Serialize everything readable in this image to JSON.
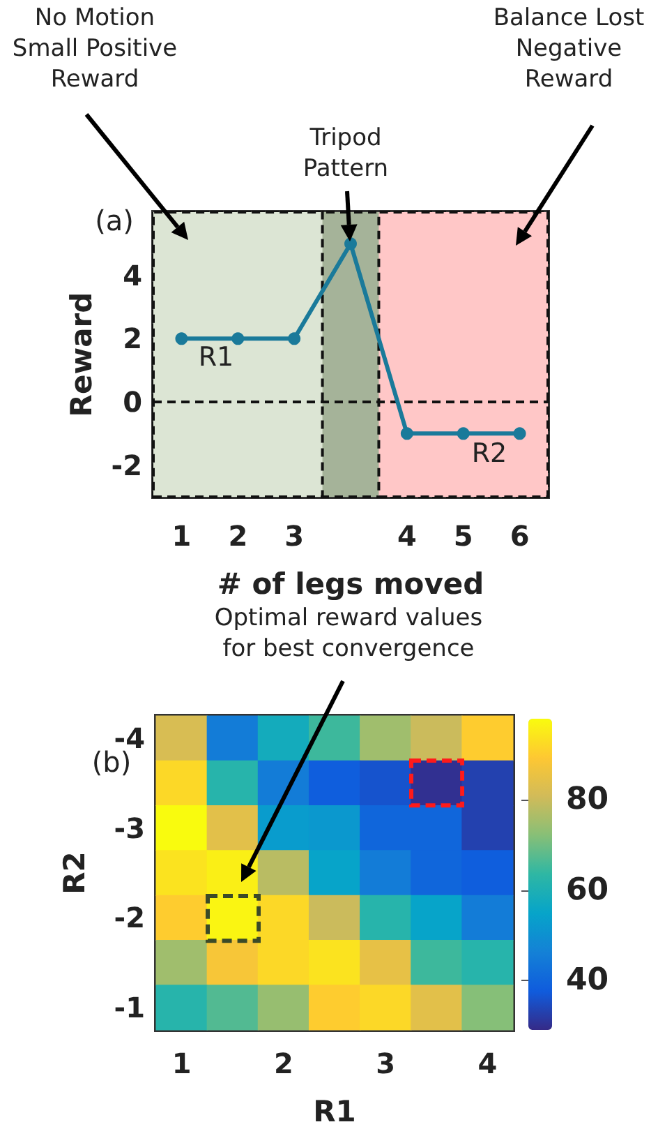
{
  "chart_data": [
    {
      "type": "line",
      "ylabel": "Reward",
      "xlabel": "# of legs moved",
      "categories": [
        "1",
        "2",
        "3",
        null,
        "4",
        "5",
        "6"
      ],
      "values": [
        2,
        2,
        2,
        5,
        -1,
        -1,
        -1
      ],
      "color": "#1a7a9a",
      "marker": "circle",
      "line_style": "solid",
      "grid": false,
      "ylim": [
        -3,
        6
      ],
      "yticks": [
        -2,
        0,
        2,
        4
      ],
      "bands": [
        {
          "axis": "x",
          "from": "1",
          "to": "6",
          "color": "#a5b399"
        },
        {
          "axis": "x",
          "from": "1",
          "to": "3",
          "color": "#dce5d4"
        },
        {
          "axis": "x",
          "from": "4",
          "to": "6",
          "color": "#ffc7c7"
        }
      ],
      "ref_lines": [
        {
          "axis": "y",
          "value": 0,
          "color": "#111111",
          "line_style": "dashed"
        }
      ],
      "annotations": [
        "(a)",
        "No Motion Small Positive Reward",
        "Tripod Pattern",
        "Balance Lost Negative Reward",
        "R1",
        "R2"
      ]
    },
    {
      "type": "heatmap",
      "xlabel": "R1",
      "ylabel": "R2",
      "categories": [
        "1",
        null,
        "2",
        null,
        "3",
        null,
        "4"
      ],
      "y_categories": [
        "-4",
        null,
        "-3",
        null,
        "-2",
        null,
        "-1"
      ],
      "cells": [
        [
          82,
          45,
          58,
          65,
          75,
          80,
          90
        ],
        [
          92,
          62,
          45,
          38,
          36,
          30,
          33
        ],
        [
          98,
          84,
          53,
          52,
          40,
          40,
          33
        ],
        [
          94,
          96,
          78,
          55,
          45,
          40,
          38
        ],
        [
          90,
          97,
          92,
          80,
          62,
          55,
          45
        ],
        [
          75,
          88,
          92,
          94,
          85,
          65,
          62
        ],
        [
          62,
          67,
          74,
          90,
          92,
          84,
          72
        ]
      ],
      "clim": [
        29,
        98
      ],
      "cticks": [
        40,
        60,
        80
      ],
      "annotations": [
        "(b)",
        "Optimal reward values for best convergence"
      ]
    }
  ]
}
